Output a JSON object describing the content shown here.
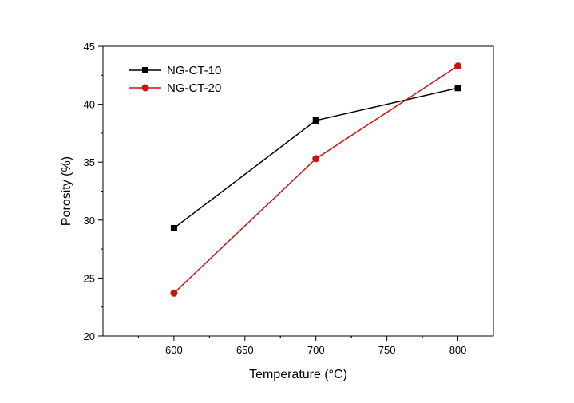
{
  "chart_data": {
    "type": "line",
    "title": "",
    "xlabel": "Temperature (°C)",
    "ylabel": "Porosity (%)",
    "xlim": [
      550,
      825
    ],
    "ylim": [
      20,
      45
    ],
    "x": [
      600,
      700,
      800
    ],
    "xticks": [
      600,
      650,
      700,
      750,
      800
    ],
    "yticks": [
      20,
      25,
      30,
      35,
      40,
      45
    ],
    "xtick_labels": [
      "600",
      "650",
      "700",
      "750",
      "800"
    ],
    "ytick_labels": [
      "20",
      "25",
      "30",
      "35",
      "40",
      "45"
    ],
    "grid": false,
    "legend_position": "top-left",
    "series": [
      {
        "name": "NG-CT-10",
        "color": "#000000",
        "marker": "square",
        "values": [
          29.3,
          38.6,
          41.4
        ]
      },
      {
        "name": "NG-CT-20",
        "color": "#cc1111",
        "marker": "circle",
        "values": [
          23.7,
          35.3,
          43.3
        ]
      }
    ]
  }
}
